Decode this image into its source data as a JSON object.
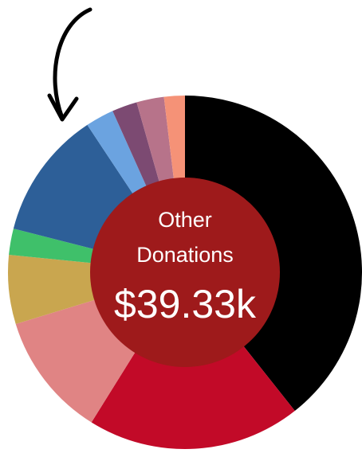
{
  "chart_data": {
    "type": "donut",
    "center_text": [
      "Other",
      "Donations",
      "$39.33k"
    ],
    "values": [
      39.3,
      19.5,
      11.4,
      6.3,
      2.4,
      11.7,
      2.6,
      2.3,
      2.5,
      1.9
    ],
    "colors": [
      "#000000",
      "#c20a28",
      "#e08484",
      "#c9a64f",
      "#3fc06a",
      "#2d5f98",
      "#6ba3e0",
      "#7c4a72",
      "#b7738a",
      "#f59277"
    ],
    "center_color": "#9e1a1b"
  }
}
